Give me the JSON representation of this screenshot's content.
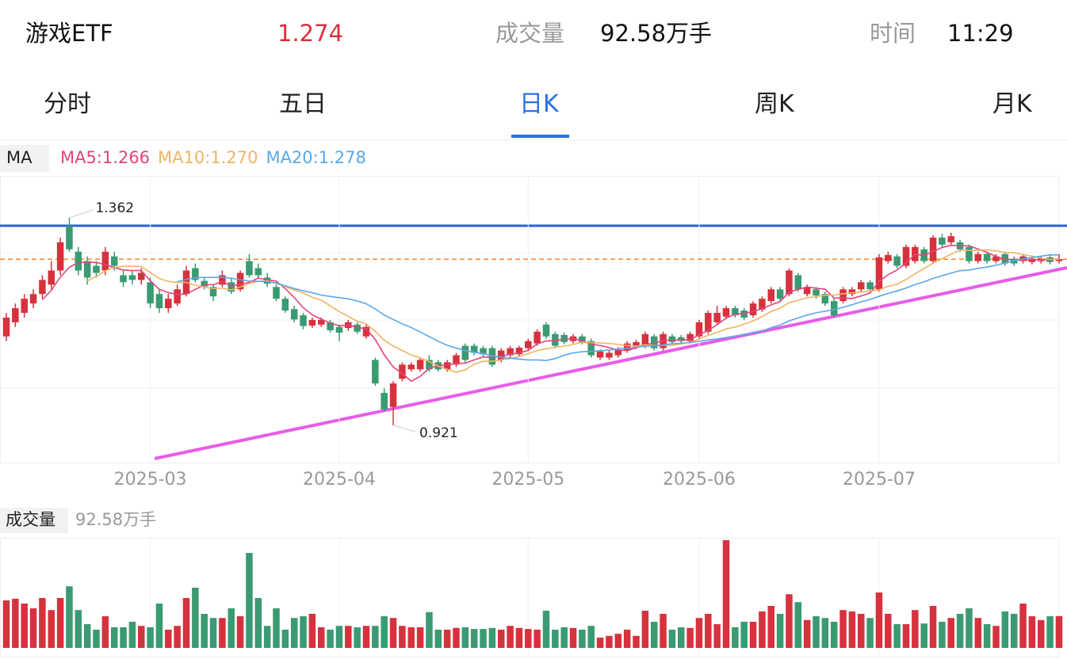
{
  "header": {
    "name": "游戏ETF",
    "price": 1.274,
    "volume_label": "成交量",
    "volume": "92.58万手",
    "time_label": "时间",
    "time": "11:29"
  },
  "tabs": [
    "分时",
    "五日",
    "日K",
    "周K",
    "月K"
  ],
  "active_tab": 2,
  "chart_data": {
    "type": "candlestick",
    "ma_title": "MA",
    "ma_legend": [
      {
        "label": "MA5:1.266",
        "period": 5,
        "color": "#e0457b"
      },
      {
        "label": "MA10:1.270",
        "period": 10,
        "color": "#f0b464"
      },
      {
        "label": "MA20:1.278",
        "period": 20,
        "color": "#5aa8e8"
      }
    ],
    "up_color": "#d6323d",
    "down_color": "#3a9a72",
    "high_label": "1.362",
    "low_label": "0.921",
    "categories": [
      null,
      null,
      null,
      null,
      null,
      null,
      null,
      null,
      null,
      null,
      null,
      null,
      null,
      null,
      null,
      null,
      "2025-03",
      null,
      null,
      null,
      null,
      null,
      null,
      null,
      null,
      null,
      null,
      null,
      null,
      null,
      null,
      null,
      null,
      null,
      null,
      null,
      null,
      "2025-04",
      null,
      null,
      null,
      null,
      null,
      null,
      null,
      null,
      null,
      null,
      null,
      null,
      null,
      null,
      null,
      null,
      null,
      null,
      null,
      null,
      "2025-05",
      null,
      null,
      null,
      null,
      null,
      null,
      null,
      null,
      null,
      null,
      null,
      null,
      null,
      null,
      null,
      null,
      null,
      null,
      "2025-06",
      null,
      null,
      null,
      null,
      null,
      null,
      null,
      null,
      null,
      null,
      null,
      null,
      null,
      null,
      null,
      null,
      null,
      null,
      null,
      "2025-07",
      null,
      null,
      null,
      null,
      null,
      null,
      null,
      null,
      null,
      null,
      null,
      null,
      null,
      null,
      null,
      null,
      null,
      null,
      null,
      null
    ],
    "candles": [
      [
        1.11,
        1.16,
        1.1,
        1.15
      ],
      [
        1.14,
        1.18,
        1.13,
        1.17
      ],
      [
        1.16,
        1.2,
        1.15,
        1.19
      ],
      [
        1.18,
        1.21,
        1.17,
        1.2
      ],
      [
        1.2,
        1.24,
        1.19,
        1.23
      ],
      [
        1.22,
        1.27,
        1.21,
        1.25
      ],
      [
        1.25,
        1.32,
        1.24,
        1.31
      ],
      [
        1.345,
        1.362,
        1.29,
        1.295
      ],
      [
        1.29,
        1.3,
        1.24,
        1.25
      ],
      [
        1.27,
        1.28,
        1.22,
        1.235
      ],
      [
        1.26,
        1.27,
        1.235,
        1.245
      ],
      [
        1.25,
        1.3,
        1.24,
        1.29
      ],
      [
        1.28,
        1.29,
        1.25,
        1.26
      ],
      [
        1.24,
        1.25,
        1.215,
        1.225
      ],
      [
        1.24,
        1.25,
        1.22,
        1.23
      ],
      [
        1.23,
        1.255,
        1.22,
        1.245
      ],
      [
        1.225,
        1.235,
        1.17,
        1.18
      ],
      [
        1.2,
        1.21,
        1.16,
        1.17
      ],
      [
        1.17,
        1.2,
        1.16,
        1.19
      ],
      [
        1.18,
        1.22,
        1.175,
        1.21
      ],
      [
        1.2,
        1.26,
        1.195,
        1.25
      ],
      [
        1.255,
        1.265,
        1.225,
        1.23
      ],
      [
        1.228,
        1.235,
        1.21,
        1.216
      ],
      [
        1.215,
        1.22,
        1.185,
        1.195
      ],
      [
        1.22,
        1.25,
        1.215,
        1.24
      ],
      [
        1.225,
        1.235,
        1.2,
        1.205
      ],
      [
        1.21,
        1.25,
        1.205,
        1.245
      ],
      [
        1.27,
        1.285,
        1.235,
        1.24
      ],
      [
        1.255,
        1.265,
        1.235,
        1.24
      ],
      [
        1.235,
        1.245,
        1.215,
        1.222
      ],
      [
        1.215,
        1.22,
        1.185,
        1.19
      ],
      [
        1.19,
        1.195,
        1.16,
        1.165
      ],
      [
        1.168,
        1.175,
        1.14,
        1.146
      ],
      [
        1.155,
        1.16,
        1.125,
        1.132
      ],
      [
        1.133,
        1.15,
        1.128,
        1.145
      ],
      [
        1.135,
        1.15,
        1.13,
        1.145
      ],
      [
        1.14,
        1.145,
        1.118,
        1.123
      ],
      [
        1.13,
        1.135,
        1.1,
        1.118
      ],
      [
        1.128,
        1.145,
        1.122,
        1.14
      ],
      [
        1.135,
        1.14,
        1.115,
        1.12
      ],
      [
        1.11,
        1.135,
        1.105,
        1.13
      ],
      [
        1.06,
        1.065,
        1.005,
        1.01
      ],
      [
        0.99,
        1.0,
        0.95,
        0.955
      ],
      [
        0.96,
        1.015,
        0.921,
        1.01
      ],
      [
        1.02,
        1.055,
        1.015,
        1.05
      ],
      [
        1.04,
        1.055,
        1.035,
        1.05
      ],
      [
        1.04,
        1.065,
        1.035,
        1.06
      ],
      [
        1.06,
        1.07,
        1.035,
        1.04
      ],
      [
        1.055,
        1.06,
        1.035,
        1.04
      ],
      [
        1.04,
        1.06,
        1.035,
        1.055
      ],
      [
        1.05,
        1.075,
        1.045,
        1.07
      ],
      [
        1.09,
        1.095,
        1.055,
        1.06
      ],
      [
        1.09,
        1.095,
        1.07,
        1.075
      ],
      [
        1.085,
        1.09,
        1.068,
        1.072
      ],
      [
        1.085,
        1.09,
        1.045,
        1.05
      ],
      [
        1.06,
        1.085,
        1.055,
        1.08
      ],
      [
        1.07,
        1.09,
        1.065,
        1.085
      ],
      [
        1.072,
        1.09,
        1.068,
        1.086
      ],
      [
        1.085,
        1.105,
        1.08,
        1.1
      ],
      [
        1.095,
        1.125,
        1.09,
        1.12
      ],
      [
        1.135,
        1.14,
        1.105,
        1.11
      ],
      [
        1.115,
        1.12,
        1.085,
        1.09
      ],
      [
        1.113,
        1.118,
        1.093,
        1.098
      ],
      [
        1.1,
        1.115,
        1.095,
        1.11
      ],
      [
        1.11,
        1.115,
        1.093,
        1.098
      ],
      [
        1.1,
        1.105,
        1.065,
        1.07
      ],
      [
        1.065,
        1.082,
        1.06,
        1.078
      ],
      [
        1.065,
        1.08,
        1.06,
        1.075
      ],
      [
        1.07,
        1.087,
        1.065,
        1.082
      ],
      [
        1.08,
        1.1,
        1.075,
        1.095
      ],
      [
        1.088,
        1.103,
        1.083,
        1.098
      ],
      [
        1.09,
        1.12,
        1.085,
        1.115
      ],
      [
        1.11,
        1.115,
        1.08,
        1.085
      ],
      [
        1.085,
        1.12,
        1.08,
        1.115
      ],
      [
        1.11,
        1.115,
        1.093,
        1.098
      ],
      [
        1.108,
        1.113,
        1.095,
        1.1
      ],
      [
        1.1,
        1.12,
        1.095,
        1.115
      ],
      [
        1.11,
        1.145,
        1.105,
        1.14
      ],
      [
        1.12,
        1.165,
        1.115,
        1.16
      ],
      [
        1.14,
        1.175,
        1.135,
        1.16
      ],
      [
        1.152,
        1.175,
        1.147,
        1.17
      ],
      [
        1.17,
        1.175,
        1.15,
        1.155
      ],
      [
        1.165,
        1.17,
        1.145,
        1.15
      ],
      [
        1.155,
        1.185,
        1.15,
        1.18
      ],
      [
        1.167,
        1.195,
        1.162,
        1.19
      ],
      [
        1.185,
        1.215,
        1.18,
        1.21
      ],
      [
        1.21,
        1.215,
        1.185,
        1.19
      ],
      [
        1.2,
        1.255,
        1.195,
        1.25
      ],
      [
        1.24,
        1.245,
        1.205,
        1.21
      ],
      [
        1.2,
        1.22,
        1.195,
        1.215
      ],
      [
        1.21,
        1.215,
        1.19,
        1.197
      ],
      [
        1.2,
        1.205,
        1.175,
        1.18
      ],
      [
        1.185,
        1.19,
        1.15,
        1.155
      ],
      [
        1.185,
        1.215,
        1.18,
        1.21
      ],
      [
        1.2,
        1.215,
        1.195,
        1.21
      ],
      [
        1.21,
        1.23,
        1.205,
        1.225
      ],
      [
        1.225,
        1.23,
        1.205,
        1.21
      ],
      [
        1.21,
        1.285,
        1.205,
        1.278
      ],
      [
        1.27,
        1.29,
        1.265,
        1.283
      ],
      [
        1.28,
        1.285,
        1.255,
        1.26
      ],
      [
        1.26,
        1.305,
        1.255,
        1.3
      ],
      [
        1.27,
        1.305,
        1.265,
        1.3
      ],
      [
        1.295,
        1.3,
        1.265,
        1.27
      ],
      [
        1.27,
        1.325,
        1.265,
        1.32
      ],
      [
        1.32,
        1.328,
        1.3,
        1.305
      ],
      [
        1.31,
        1.33,
        1.305,
        1.323
      ],
      [
        1.31,
        1.315,
        1.29,
        1.295
      ],
      [
        1.3,
        1.305,
        1.265,
        1.27
      ],
      [
        1.27,
        1.29,
        1.265,
        1.285
      ],
      [
        1.285,
        1.29,
        1.265,
        1.27
      ],
      [
        1.27,
        1.285,
        1.265,
        1.28
      ],
      [
        1.285,
        1.29,
        1.26,
        1.265
      ],
      [
        1.275,
        1.28,
        1.26,
        1.265
      ],
      [
        1.27,
        1.285,
        1.265,
        1.28
      ],
      [
        1.268,
        1.28,
        1.263,
        1.275
      ],
      [
        1.27,
        1.28,
        1.265,
        1.276
      ],
      [
        1.278,
        1.283,
        1.263,
        1.268
      ],
      [
        1.27,
        1.285,
        1.265,
        1.274
      ]
    ],
    "volume_title": "成交量",
    "volume_value": "92.58万手",
    "volumes": [
      138,
      143,
      129,
      115,
      145,
      110,
      145,
      179,
      110,
      69,
      53,
      92,
      60,
      60,
      76,
      64,
      60,
      129,
      53,
      64,
      145,
      175,
      99,
      87,
      87,
      115,
      92,
      276,
      145,
      64,
      115,
      53,
      87,
      92,
      99,
      60,
      53,
      64,
      64,
      60,
      64,
      64,
      92,
      87,
      64,
      60,
      60,
      104,
      53,
      53,
      58,
      60,
      55,
      55,
      58,
      53,
      64,
      58,
      55,
      53,
      108,
      53,
      60,
      58,
      53,
      64,
      30,
      35,
      41,
      53,
      35,
      108,
      76,
      99,
      53,
      60,
      58,
      87,
      99,
      69,
      313,
      60,
      76,
      76,
      106,
      122,
      99,
      156,
      133,
      81,
      92,
      87,
      76,
      110,
      106,
      99,
      87,
      161,
      99,
      69,
      69,
      110,
      71,
      122,
      76,
      87,
      99,
      115,
      87,
      69,
      64,
      106,
      99,
      129,
      92,
      81,
      92,
      92.58
    ]
  }
}
